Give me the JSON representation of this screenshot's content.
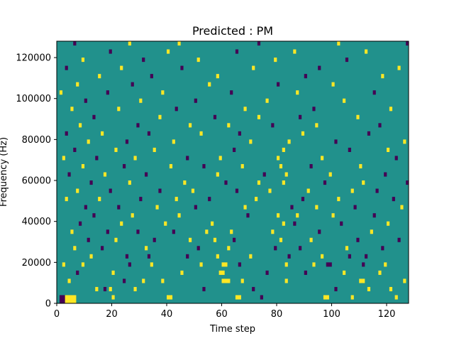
{
  "chart_data": {
    "type": "heatmap",
    "title": "Predicted : PM",
    "xlabel": "Time step",
    "ylabel": "Frequency (Hz)",
    "xlim": [
      0,
      128
    ],
    "ylim": [
      0,
      128000
    ],
    "xticks": [
      0,
      20,
      40,
      60,
      80,
      100,
      120
    ],
    "yticks": [
      0,
      20000,
      40000,
      60000,
      80000,
      100000,
      120000
    ],
    "xtick_labels": [
      "0",
      "20",
      "40",
      "60",
      "80",
      "100",
      "120"
    ],
    "ytick_labels": [
      "0",
      "20000",
      "40000",
      "60000",
      "80000",
      "100000",
      "120000"
    ],
    "grid": "off",
    "legend": "none",
    "colormap": {
      "low": "#440154",
      "mid": "#21918c",
      "high": "#fde725"
    },
    "background_value": 0,
    "bin_width_hz": 2000,
    "cells": [
      {
        "t": 1,
        "f": 0,
        "v": -1
      },
      {
        "t": 2,
        "f": 0,
        "v": -1
      },
      {
        "t": 3,
        "f": 0,
        "v": 1
      },
      {
        "t": 4,
        "f": 0,
        "v": 1
      },
      {
        "t": 5,
        "f": 0,
        "v": 1
      },
      {
        "t": 6,
        "f": 0,
        "v": 1
      },
      {
        "t": 1,
        "f": 2000,
        "v": -1
      },
      {
        "t": 2,
        "f": 2000,
        "v": -1
      },
      {
        "t": 3,
        "f": 2000,
        "v": 1
      },
      {
        "t": 4,
        "f": 2000,
        "v": 1
      },
      {
        "t": 5,
        "f": 2000,
        "v": 1
      },
      {
        "t": 6,
        "f": 2000,
        "v": 1
      },
      {
        "t": 20,
        "f": 2000,
        "v": 1
      },
      {
        "t": 40,
        "f": 2000,
        "v": 1
      },
      {
        "t": 41,
        "f": 2000,
        "v": 1
      },
      {
        "t": 65,
        "f": 2000,
        "v": 1
      },
      {
        "t": 66,
        "f": 2000,
        "v": 1
      },
      {
        "t": 74,
        "f": 2000,
        "v": -1
      },
      {
        "t": 97,
        "f": 2000,
        "v": 1
      },
      {
        "t": 98,
        "f": 2000,
        "v": 1
      },
      {
        "t": 107,
        "f": 2000,
        "v": 1
      },
      {
        "t": 123,
        "f": 2000,
        "v": 1
      },
      {
        "t": 14,
        "f": 6000,
        "v": 1
      },
      {
        "t": 17,
        "f": 6000,
        "v": -1
      },
      {
        "t": 19,
        "f": 6000,
        "v": 1
      },
      {
        "t": 28,
        "f": 6000,
        "v": 1
      },
      {
        "t": 53,
        "f": 6000,
        "v": -1
      },
      {
        "t": 71,
        "f": 6000,
        "v": -1
      },
      {
        "t": 101,
        "f": 6000,
        "v": -1
      },
      {
        "t": 113,
        "f": 6000,
        "v": 1
      },
      {
        "t": 121,
        "f": 6000,
        "v": 1
      },
      {
        "t": 4,
        "f": 10000,
        "v": 1
      },
      {
        "t": 24,
        "f": 10000,
        "v": -1
      },
      {
        "t": 31,
        "f": 10000,
        "v": 1
      },
      {
        "t": 38,
        "f": 10000,
        "v": 1
      },
      {
        "t": 60,
        "f": 10000,
        "v": 1
      },
      {
        "t": 61,
        "f": 10000,
        "v": 1
      },
      {
        "t": 62,
        "f": 10000,
        "v": 1
      },
      {
        "t": 67,
        "f": 10000,
        "v": 1
      },
      {
        "t": 83,
        "f": 10000,
        "v": 1
      },
      {
        "t": 110,
        "f": 10000,
        "v": 1
      },
      {
        "t": 111,
        "f": 10000,
        "v": 1
      },
      {
        "t": 126,
        "f": 10000,
        "v": 1
      },
      {
        "t": 7,
        "f": 14000,
        "v": -1
      },
      {
        "t": 20,
        "f": 14000,
        "v": 1
      },
      {
        "t": 45,
        "f": 14000,
        "v": 1
      },
      {
        "t": 59,
        "f": 14000,
        "v": 1
      },
      {
        "t": 60,
        "f": 14000,
        "v": 1
      },
      {
        "t": 76,
        "f": 14000,
        "v": -1
      },
      {
        "t": 90,
        "f": 14000,
        "v": -1
      },
      {
        "t": 104,
        "f": 14000,
        "v": 1
      },
      {
        "t": 117,
        "f": 14000,
        "v": 1
      },
      {
        "t": 2,
        "f": 18000,
        "v": 1
      },
      {
        "t": 9,
        "f": 18000,
        "v": 1
      },
      {
        "t": 26,
        "f": 18000,
        "v": -1
      },
      {
        "t": 34,
        "f": 18000,
        "v": 1
      },
      {
        "t": 52,
        "f": 18000,
        "v": 1
      },
      {
        "t": 60,
        "f": 18000,
        "v": 1
      },
      {
        "t": 61,
        "f": 18000,
        "v": 1
      },
      {
        "t": 66,
        "f": 18000,
        "v": -1
      },
      {
        "t": 83,
        "f": 18000,
        "v": 1
      },
      {
        "t": 93,
        "f": 18000,
        "v": 1
      },
      {
        "t": 98,
        "f": 18000,
        "v": -1
      },
      {
        "t": 99,
        "f": 18000,
        "v": -1
      },
      {
        "t": 111,
        "f": 18000,
        "v": -1
      },
      {
        "t": 119,
        "f": 18000,
        "v": 1
      },
      {
        "t": 12,
        "f": 22000,
        "v": 1
      },
      {
        "t": 25,
        "f": 22000,
        "v": -1
      },
      {
        "t": 33,
        "f": 22000,
        "v": -1
      },
      {
        "t": 47,
        "f": 22000,
        "v": -1
      },
      {
        "t": 58,
        "f": 22000,
        "v": 1
      },
      {
        "t": 70,
        "f": 22000,
        "v": 1
      },
      {
        "t": 84,
        "f": 22000,
        "v": -1
      },
      {
        "t": 96,
        "f": 22000,
        "v": 1
      },
      {
        "t": 106,
        "f": 22000,
        "v": -1
      },
      {
        "t": 112,
        "f": 22000,
        "v": -1
      },
      {
        "t": 6,
        "f": 26000,
        "v": 1
      },
      {
        "t": 16,
        "f": 26000,
        "v": -1
      },
      {
        "t": 32,
        "f": 26000,
        "v": 1
      },
      {
        "t": 51,
        "f": 26000,
        "v": -1
      },
      {
        "t": 62,
        "f": 26000,
        "v": 1
      },
      {
        "t": 79,
        "f": 26000,
        "v": -1
      },
      {
        "t": 88,
        "f": 26000,
        "v": -1
      },
      {
        "t": 105,
        "f": 26000,
        "v": 1
      },
      {
        "t": 118,
        "f": 26000,
        "v": -1
      },
      {
        "t": 11,
        "f": 30000,
        "v": -1
      },
      {
        "t": 21,
        "f": 30000,
        "v": 1
      },
      {
        "t": 35,
        "f": 30000,
        "v": -1
      },
      {
        "t": 48,
        "f": 30000,
        "v": 1
      },
      {
        "t": 57,
        "f": 30000,
        "v": 1
      },
      {
        "t": 64,
        "f": 30000,
        "v": -1
      },
      {
        "t": 81,
        "f": 30000,
        "v": 1
      },
      {
        "t": 92,
        "f": 30000,
        "v": 1
      },
      {
        "t": 109,
        "f": 30000,
        "v": -1
      },
      {
        "t": 124,
        "f": 30000,
        "v": -1
      },
      {
        "t": 5,
        "f": 34000,
        "v": 1
      },
      {
        "t": 18,
        "f": 34000,
        "v": -1
      },
      {
        "t": 29,
        "f": 34000,
        "v": -1
      },
      {
        "t": 42,
        "f": 34000,
        "v": -1
      },
      {
        "t": 54,
        "f": 34000,
        "v": 1
      },
      {
        "t": 63,
        "f": 34000,
        "v": 1
      },
      {
        "t": 78,
        "f": 34000,
        "v": 1
      },
      {
        "t": 95,
        "f": 34000,
        "v": -1
      },
      {
        "t": 114,
        "f": 34000,
        "v": 1
      },
      {
        "t": 8,
        "f": 38000,
        "v": -1
      },
      {
        "t": 23,
        "f": 38000,
        "v": 1
      },
      {
        "t": 39,
        "f": 38000,
        "v": 1
      },
      {
        "t": 56,
        "f": 38000,
        "v": 1
      },
      {
        "t": 82,
        "f": 38000,
        "v": 1
      },
      {
        "t": 86,
        "f": 38000,
        "v": -1
      },
      {
        "t": 103,
        "f": 38000,
        "v": -1
      },
      {
        "t": 120,
        "f": 38000,
        "v": 1
      },
      {
        "t": 13,
        "f": 42000,
        "v": -1
      },
      {
        "t": 27,
        "f": 42000,
        "v": 1
      },
      {
        "t": 44,
        "f": 42000,
        "v": 1
      },
      {
        "t": 69,
        "f": 42000,
        "v": -1
      },
      {
        "t": 80,
        "f": 42000,
        "v": 1
      },
      {
        "t": 87,
        "f": 42000,
        "v": 1
      },
      {
        "t": 100,
        "f": 42000,
        "v": 1
      },
      {
        "t": 115,
        "f": 42000,
        "v": -1
      },
      {
        "t": 10,
        "f": 46000,
        "v": -1
      },
      {
        "t": 22,
        "f": 46000,
        "v": -1
      },
      {
        "t": 36,
        "f": 46000,
        "v": 1
      },
      {
        "t": 50,
        "f": 46000,
        "v": -1
      },
      {
        "t": 68,
        "f": 46000,
        "v": 1
      },
      {
        "t": 85,
        "f": 46000,
        "v": -1
      },
      {
        "t": 94,
        "f": 46000,
        "v": 1
      },
      {
        "t": 108,
        "f": 46000,
        "v": -1
      },
      {
        "t": 125,
        "f": 46000,
        "v": 1
      },
      {
        "t": 3,
        "f": 50000,
        "v": 1
      },
      {
        "t": 15,
        "f": 50000,
        "v": 1
      },
      {
        "t": 30,
        "f": 50000,
        "v": -1
      },
      {
        "t": 43,
        "f": 50000,
        "v": 1
      },
      {
        "t": 55,
        "f": 50000,
        "v": -1
      },
      {
        "t": 72,
        "f": 50000,
        "v": 1
      },
      {
        "t": 89,
        "f": 50000,
        "v": -1
      },
      {
        "t": 102,
        "f": 50000,
        "v": 1
      },
      {
        "t": 122,
        "f": 50000,
        "v": -1
      },
      {
        "t": 7,
        "f": 54000,
        "v": 1
      },
      {
        "t": 19,
        "f": 54000,
        "v": -1
      },
      {
        "t": 37,
        "f": 54000,
        "v": -1
      },
      {
        "t": 49,
        "f": 54000,
        "v": 1
      },
      {
        "t": 65,
        "f": 54000,
        "v": -1
      },
      {
        "t": 77,
        "f": 54000,
        "v": 1
      },
      {
        "t": 91,
        "f": 54000,
        "v": 1
      },
      {
        "t": 107,
        "f": 54000,
        "v": 1
      },
      {
        "t": 116,
        "f": 54000,
        "v": -1
      },
      {
        "t": 12,
        "f": 58000,
        "v": -1
      },
      {
        "t": 26,
        "f": 58000,
        "v": 1
      },
      {
        "t": 46,
        "f": 58000,
        "v": 1
      },
      {
        "t": 61,
        "f": 58000,
        "v": -1
      },
      {
        "t": 73,
        "f": 58000,
        "v": 1
      },
      {
        "t": 82,
        "f": 58000,
        "v": 1
      },
      {
        "t": 97,
        "f": 58000,
        "v": -1
      },
      {
        "t": 111,
        "f": 58000,
        "v": 1
      },
      {
        "t": 127,
        "f": 58000,
        "v": -1
      },
      {
        "t": 4,
        "f": 62000,
        "v": -1
      },
      {
        "t": 17,
        "f": 62000,
        "v": 1
      },
      {
        "t": 32,
        "f": 62000,
        "v": -1
      },
      {
        "t": 58,
        "f": 62000,
        "v": 1
      },
      {
        "t": 75,
        "f": 62000,
        "v": -1
      },
      {
        "t": 83,
        "f": 62000,
        "v": 1
      },
      {
        "t": 99,
        "f": 62000,
        "v": 1
      },
      {
        "t": 119,
        "f": 62000,
        "v": -1
      },
      {
        "t": 9,
        "f": 66000,
        "v": 1
      },
      {
        "t": 24,
        "f": 66000,
        "v": -1
      },
      {
        "t": 41,
        "f": 66000,
        "v": 1
      },
      {
        "t": 53,
        "f": 66000,
        "v": -1
      },
      {
        "t": 67,
        "f": 66000,
        "v": 1
      },
      {
        "t": 81,
        "f": 66000,
        "v": 1
      },
      {
        "t": 92,
        "f": 66000,
        "v": -1
      },
      {
        "t": 110,
        "f": 66000,
        "v": 1
      },
      {
        "t": 2,
        "f": 70000,
        "v": 1
      },
      {
        "t": 14,
        "f": 70000,
        "v": -1
      },
      {
        "t": 28,
        "f": 70000,
        "v": 1
      },
      {
        "t": 47,
        "f": 70000,
        "v": -1
      },
      {
        "t": 59,
        "f": 70000,
        "v": 1
      },
      {
        "t": 80,
        "f": 70000,
        "v": 1
      },
      {
        "t": 96,
        "f": 70000,
        "v": 1
      },
      {
        "t": 123,
        "f": 70000,
        "v": -1
      },
      {
        "t": 6,
        "f": 74000,
        "v": -1
      },
      {
        "t": 21,
        "f": 74000,
        "v": 1
      },
      {
        "t": 35,
        "f": 74000,
        "v": 1
      },
      {
        "t": 64,
        "f": 74000,
        "v": -1
      },
      {
        "t": 82,
        "f": 74000,
        "v": 1
      },
      {
        "t": 106,
        "f": 74000,
        "v": -1
      },
      {
        "t": 120,
        "f": 74000,
        "v": 1
      },
      {
        "t": 11,
        "f": 78000,
        "v": 1
      },
      {
        "t": 25,
        "f": 78000,
        "v": -1
      },
      {
        "t": 42,
        "f": 78000,
        "v": 1
      },
      {
        "t": 70,
        "f": 78000,
        "v": 1
      },
      {
        "t": 84,
        "f": 78000,
        "v": 1
      },
      {
        "t": 101,
        "f": 78000,
        "v": -1
      },
      {
        "t": 126,
        "f": 78000,
        "v": 1
      },
      {
        "t": 3,
        "f": 82000,
        "v": -1
      },
      {
        "t": 16,
        "f": 82000,
        "v": 1
      },
      {
        "t": 33,
        "f": 82000,
        "v": -1
      },
      {
        "t": 52,
        "f": 82000,
        "v": 1
      },
      {
        "t": 66,
        "f": 82000,
        "v": -1
      },
      {
        "t": 89,
        "f": 82000,
        "v": 1
      },
      {
        "t": 113,
        "f": 82000,
        "v": -1
      },
      {
        "t": 8,
        "f": 86000,
        "v": 1
      },
      {
        "t": 29,
        "f": 86000,
        "v": -1
      },
      {
        "t": 48,
        "f": 86000,
        "v": 1
      },
      {
        "t": 62,
        "f": 86000,
        "v": 1
      },
      {
        "t": 78,
        "f": 86000,
        "v": -1
      },
      {
        "t": 94,
        "f": 86000,
        "v": 1
      },
      {
        "t": 117,
        "f": 86000,
        "v": -1
      },
      {
        "t": 13,
        "f": 90000,
        "v": -1
      },
      {
        "t": 37,
        "f": 90000,
        "v": 1
      },
      {
        "t": 57,
        "f": 90000,
        "v": -1
      },
      {
        "t": 73,
        "f": 90000,
        "v": 1
      },
      {
        "t": 88,
        "f": 90000,
        "v": -1
      },
      {
        "t": 109,
        "f": 90000,
        "v": 1
      },
      {
        "t": 5,
        "f": 94000,
        "v": 1
      },
      {
        "t": 22,
        "f": 94000,
        "v": 1
      },
      {
        "t": 43,
        "f": 94000,
        "v": -1
      },
      {
        "t": 68,
        "f": 94000,
        "v": 1
      },
      {
        "t": 93,
        "f": 94000,
        "v": -1
      },
      {
        "t": 121,
        "f": 94000,
        "v": 1
      },
      {
        "t": 10,
        "f": 98000,
        "v": -1
      },
      {
        "t": 30,
        "f": 98000,
        "v": 1
      },
      {
        "t": 50,
        "f": 98000,
        "v": -1
      },
      {
        "t": 76,
        "f": 98000,
        "v": 1
      },
      {
        "t": 104,
        "f": 98000,
        "v": 1
      },
      {
        "t": 1,
        "f": 102000,
        "v": 1
      },
      {
        "t": 18,
        "f": 102000,
        "v": -1
      },
      {
        "t": 38,
        "f": 102000,
        "v": 1
      },
      {
        "t": 63,
        "f": 102000,
        "v": -1
      },
      {
        "t": 87,
        "f": 102000,
        "v": 1
      },
      {
        "t": 115,
        "f": 102000,
        "v": -1
      },
      {
        "t": 7,
        "f": 106000,
        "v": 1
      },
      {
        "t": 27,
        "f": 106000,
        "v": -1
      },
      {
        "t": 55,
        "f": 106000,
        "v": 1
      },
      {
        "t": 80,
        "f": 106000,
        "v": -1
      },
      {
        "t": 100,
        "f": 106000,
        "v": 1
      },
      {
        "t": 15,
        "f": 110000,
        "v": 1
      },
      {
        "t": 34,
        "f": 110000,
        "v": -1
      },
      {
        "t": 58,
        "f": 110000,
        "v": 1
      },
      {
        "t": 90,
        "f": 110000,
        "v": -1
      },
      {
        "t": 118,
        "f": 110000,
        "v": 1
      },
      {
        "t": 3,
        "f": 114000,
        "v": -1
      },
      {
        "t": 23,
        "f": 114000,
        "v": 1
      },
      {
        "t": 45,
        "f": 114000,
        "v": -1
      },
      {
        "t": 71,
        "f": 114000,
        "v": 1
      },
      {
        "t": 95,
        "f": 114000,
        "v": -1
      },
      {
        "t": 124,
        "f": 114000,
        "v": 1
      },
      {
        "t": 9,
        "f": 118000,
        "v": 1
      },
      {
        "t": 31,
        "f": 118000,
        "v": -1
      },
      {
        "t": 51,
        "f": 118000,
        "v": 1
      },
      {
        "t": 79,
        "f": 118000,
        "v": 1
      },
      {
        "t": 105,
        "f": 118000,
        "v": -1
      },
      {
        "t": 19,
        "f": 122000,
        "v": -1
      },
      {
        "t": 40,
        "f": 122000,
        "v": 1
      },
      {
        "t": 65,
        "f": 122000,
        "v": -1
      },
      {
        "t": 86,
        "f": 122000,
        "v": 1
      },
      {
        "t": 112,
        "f": 122000,
        "v": 1
      },
      {
        "t": 6,
        "f": 126000,
        "v": -1
      },
      {
        "t": 26,
        "f": 126000,
        "v": 1
      },
      {
        "t": 44,
        "f": 126000,
        "v": 1
      },
      {
        "t": 73,
        "f": 126000,
        "v": -1
      },
      {
        "t": 102,
        "f": 126000,
        "v": 1
      },
      {
        "t": 127,
        "f": 126000,
        "v": -1
      }
    ]
  }
}
